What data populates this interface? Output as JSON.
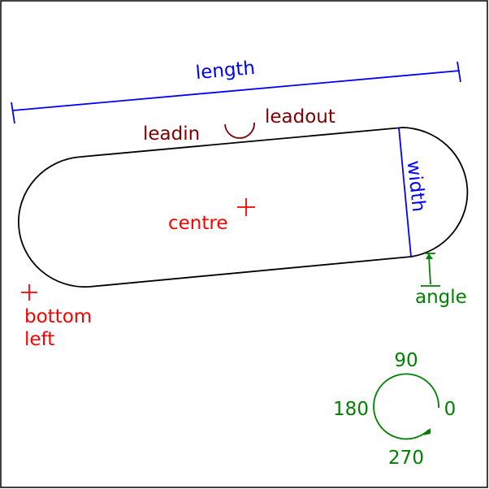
{
  "labels": {
    "length": "length",
    "width": "width",
    "leadin": "leadin",
    "leadout": "leadout",
    "centre": "centre",
    "bottom": "bottom",
    "left": "left",
    "angle": "angle"
  },
  "compass": {
    "north": "90",
    "west": "180",
    "east": "0",
    "south": "270"
  },
  "colors": {
    "outline": "#000000",
    "dimension": "#0000ff",
    "lead": "#800000",
    "marker": "#ff0000",
    "angle": "#008000"
  }
}
